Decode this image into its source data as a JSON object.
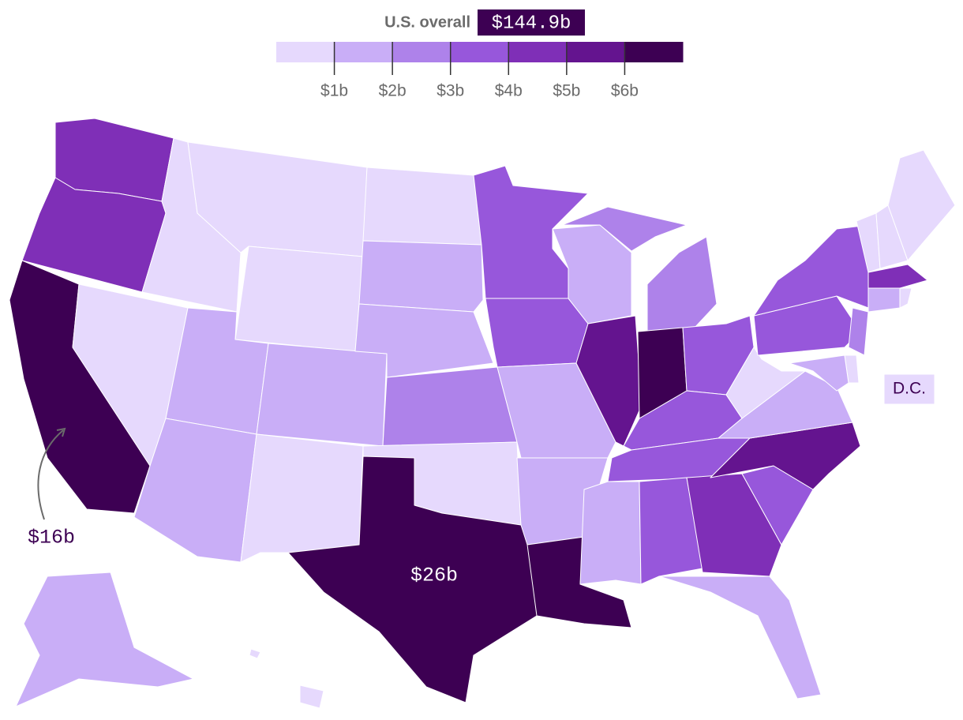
{
  "header": {
    "label": "U.S. overall",
    "value": "$144.9b"
  },
  "legend": {
    "colors": [
      "#e6d9fd",
      "#c9aef7",
      "#ae82ea",
      "#9757db",
      "#7f2fb7",
      "#64148f",
      "#3d0053"
    ],
    "ticks": [
      {
        "value": 1,
        "label": "$1b"
      },
      {
        "value": 2,
        "label": "$2b"
      },
      {
        "value": 3,
        "label": "$3b"
      },
      {
        "value": 4,
        "label": "$4b"
      },
      {
        "value": 5,
        "label": "$5b"
      },
      {
        "value": 6,
        "label": "$6b"
      }
    ]
  },
  "map": {
    "states": {
      "values": [
        4.5,
        4.5,
        16,
        0.5,
        0.5,
        0.5,
        0.5,
        1.5,
        1.5,
        1.5,
        0.5,
        0.5,
        1.5,
        1.5,
        2.5,
        0.5,
        26,
        3.5,
        3.5,
        1.5,
        1.5,
        6.5,
        1.5,
        5.5,
        2.5,
        2.5,
        6.5,
        3.5,
        3.5,
        3.5,
        1.5,
        3.5,
        4.5,
        1.5,
        3.5,
        5.5,
        1.5,
        0.5,
        3.5,
        3.5,
        0.5,
        0.5,
        0.5,
        4.5,
        1.5,
        0.5,
        2.5,
        0.5,
        1.5,
        0.5,
        1.5,
        0.5,
        0.5
      ]
    },
    "annotations": [
      "$16b",
      "$26b"
    ],
    "dc_label": "D.C."
  }
}
